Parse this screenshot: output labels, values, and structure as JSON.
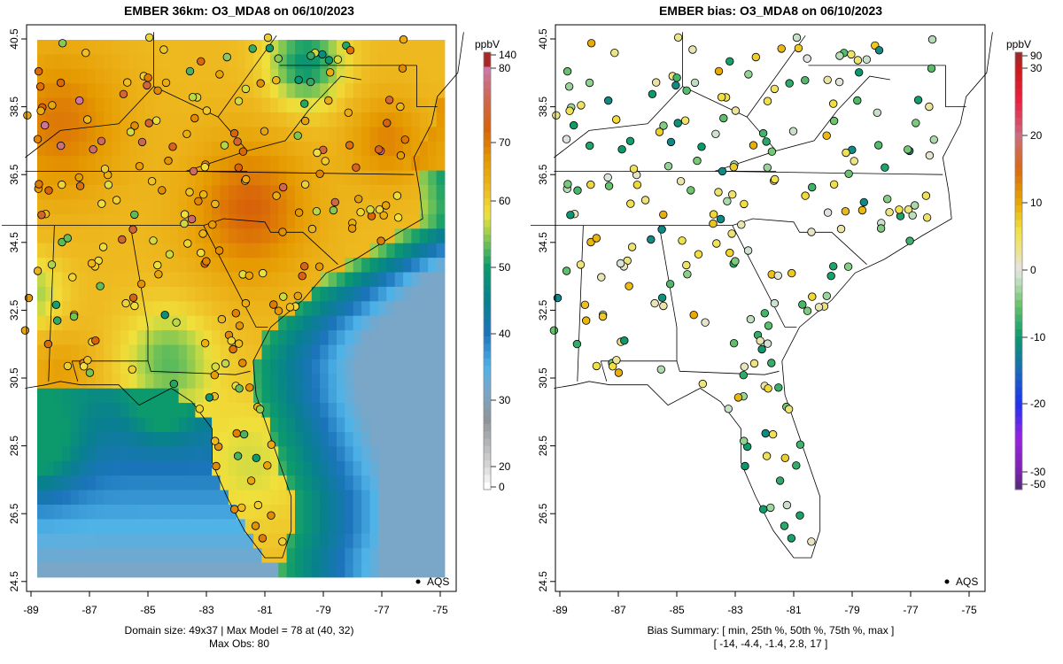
{
  "left": {
    "title": "EMBER 36km: O3_MDA8 on 06/10/2023",
    "footer_line1": "Domain size: 49x37 | Max Model = 78 at (40, 32)",
    "footer_line2": "Max Obs: 80",
    "legend_label": "AQS",
    "colorbar_unit": "ppbV",
    "colorbar_ticks": [
      "140",
      "80",
      "70",
      "60",
      "50",
      "40",
      "30",
      "20",
      "0"
    ]
  },
  "right": {
    "title": "EMBER bias: O3_MDA8 on 06/10/2023",
    "footer_line1": "Bias Summary: [ min, 25th %, 50th %, 75th %, max ]",
    "footer_line2": "[ -14,   -4.4,   -1.4,   2.8,   17 ]",
    "legend_label": "AQS",
    "colorbar_unit": "ppbV",
    "colorbar_ticks": [
      "90",
      "30",
      "20",
      "10",
      "0",
      "-10",
      "-20",
      "-30",
      "-50"
    ]
  },
  "axes": {
    "lon_ticks": [
      "-89",
      "-87",
      "-85",
      "-83",
      "-81",
      "-79",
      "-77",
      "-75"
    ],
    "lat_ticks": [
      "40.5",
      "38.5",
      "36.5",
      "34.5",
      "32.5",
      "30.5",
      "28.5",
      "26.5",
      "24.5"
    ]
  },
  "bias_summary": {
    "min": -14,
    "p25": -4.4,
    "p50": -1.4,
    "p75": 2.8,
    "max": 17
  },
  "max_model": 78,
  "max_obs": 80
}
